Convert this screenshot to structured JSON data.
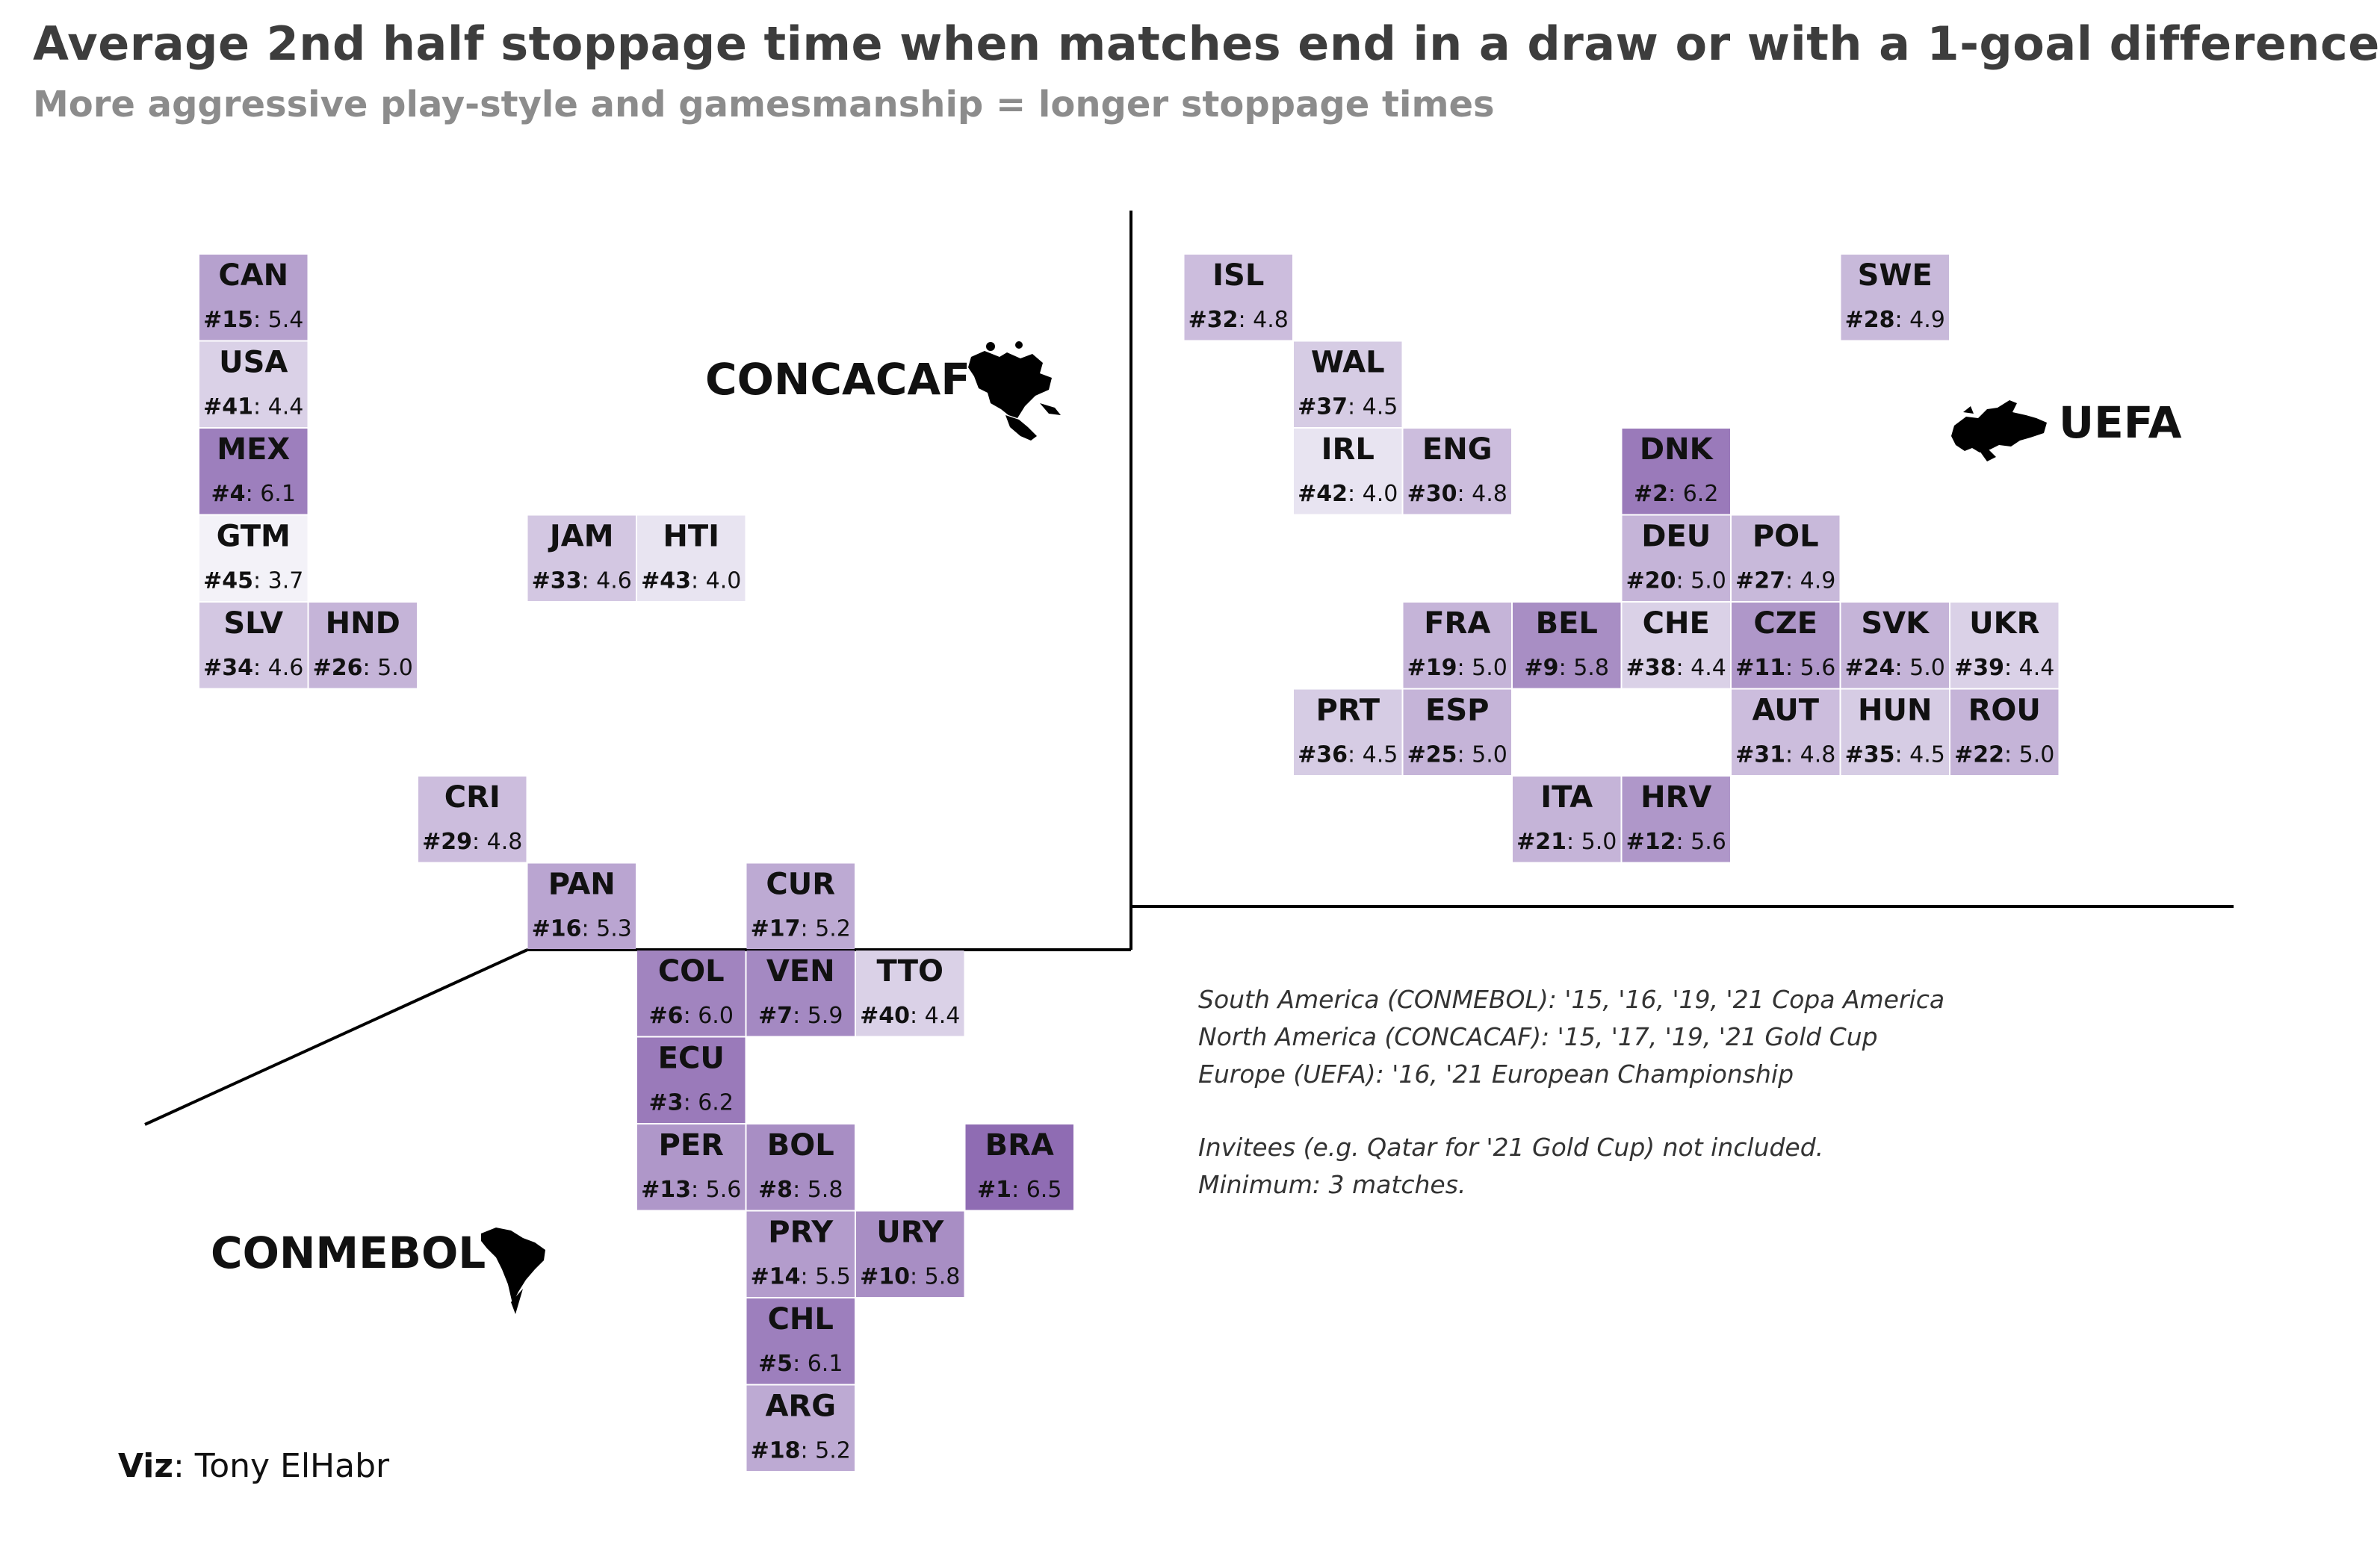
{
  "title": "Average 2nd half stoppage time when matches end in a draw or with a 1-goal difference",
  "subtitle": "More aggressive play-style and gamesmanship = longer stoppage times",
  "regions": {
    "concacaf": "CONCACAF",
    "uefa": "UEFA",
    "conmebol": "CONMEBOL"
  },
  "notes": {
    "lines": [
      "South America (CONMEBOL): '15, '16, '19, '21 Copa America",
      "North America (CONCACAF): '15, '17, '19, '21 Gold Cup",
      "Europe (UEFA): '16, '21 European Championship"
    ],
    "extra": [
      "Invitees (e.g. Qatar for '21 Gold Cup) not included.",
      "Minimum: 3 matches."
    ]
  },
  "credit": {
    "label": "Viz",
    "name": ": Tony ElHabr"
  },
  "colors": {
    "low": "#f3f2f8",
    "high": "#8f6cb3",
    "line": "#000000"
  },
  "chart_data": {
    "type": "heatmap",
    "title": "Average 2nd half stoppage time when matches end in a draw or with a 1-goal difference",
    "subtitle": "More aggressive play-style and gamesmanship = longer stoppage times",
    "value_range": [
      3.7,
      6.5
    ],
    "tiles": [
      {
        "code": "CAN",
        "rank": "#15",
        "value": "5.4",
        "col": 0,
        "row": 0
      },
      {
        "code": "USA",
        "rank": "#41",
        "value": "4.4",
        "col": 0,
        "row": 1
      },
      {
        "code": "MEX",
        "rank": "#4",
        "value": "6.1",
        "col": 0,
        "row": 2
      },
      {
        "code": "GTM",
        "rank": "#45",
        "value": "3.7",
        "col": 0,
        "row": 3
      },
      {
        "code": "JAM",
        "rank": "#33",
        "value": "4.6",
        "col": 3,
        "row": 3
      },
      {
        "code": "HTI",
        "rank": "#43",
        "value": "4.0",
        "col": 4,
        "row": 3
      },
      {
        "code": "SLV",
        "rank": "#34",
        "value": "4.6",
        "col": 0,
        "row": 4
      },
      {
        "code": "HND",
        "rank": "#26",
        "value": "5.0",
        "col": 1,
        "row": 4
      },
      {
        "code": "CRI",
        "rank": "#29",
        "value": "4.8",
        "col": 2,
        "row": 6
      },
      {
        "code": "PAN",
        "rank": "#16",
        "value": "5.3",
        "col": 3,
        "row": 7
      },
      {
        "code": "CUR",
        "rank": "#17",
        "value": "5.2",
        "col": 5,
        "row": 7
      },
      {
        "code": "COL",
        "rank": "#6",
        "value": "6.0",
        "col": 4,
        "row": 8
      },
      {
        "code": "VEN",
        "rank": "#7",
        "value": "5.9",
        "col": 5,
        "row": 8
      },
      {
        "code": "TTO",
        "rank": "#40",
        "value": "4.4",
        "col": 6,
        "row": 8
      },
      {
        "code": "ECU",
        "rank": "#3",
        "value": "6.2",
        "col": 4,
        "row": 9
      },
      {
        "code": "PER",
        "rank": "#13",
        "value": "5.6",
        "col": 4,
        "row": 10
      },
      {
        "code": "BOL",
        "rank": "#8",
        "value": "5.8",
        "col": 5,
        "row": 10
      },
      {
        "code": "BRA",
        "rank": "#1",
        "value": "6.5",
        "col": 7,
        "row": 10
      },
      {
        "code": "PRY",
        "rank": "#14",
        "value": "5.5",
        "col": 5,
        "row": 11
      },
      {
        "code": "URY",
        "rank": "#10",
        "value": "5.8",
        "col": 6,
        "row": 11
      },
      {
        "code": "CHL",
        "rank": "#5",
        "value": "6.1",
        "col": 5,
        "row": 12
      },
      {
        "code": "ARG",
        "rank": "#18",
        "value": "5.2",
        "col": 5,
        "row": 13
      },
      {
        "code": "ISL",
        "rank": "#32",
        "value": "4.8",
        "col": 9,
        "row": 0
      },
      {
        "code": "SWE",
        "rank": "#28",
        "value": "4.9",
        "col": 15,
        "row": 0
      },
      {
        "code": "WAL",
        "rank": "#37",
        "value": "4.5",
        "col": 10,
        "row": 1
      },
      {
        "code": "IRL",
        "rank": "#42",
        "value": "4.0",
        "col": 10,
        "row": 2
      },
      {
        "code": "ENG",
        "rank": "#30",
        "value": "4.8",
        "col": 11,
        "row": 2
      },
      {
        "code": "DNK",
        "rank": "#2",
        "value": "6.2",
        "col": 13,
        "row": 2
      },
      {
        "code": "DEU",
        "rank": "#20",
        "value": "5.0",
        "col": 13,
        "row": 3
      },
      {
        "code": "POL",
        "rank": "#27",
        "value": "4.9",
        "col": 14,
        "row": 3
      },
      {
        "code": "FRA",
        "rank": "#19",
        "value": "5.0",
        "col": 11,
        "row": 4
      },
      {
        "code": "BEL",
        "rank": "#9",
        "value": "5.8",
        "col": 12,
        "row": 4
      },
      {
        "code": "CHE",
        "rank": "#38",
        "value": "4.4",
        "col": 13,
        "row": 4
      },
      {
        "code": "CZE",
        "rank": "#11",
        "value": "5.6",
        "col": 14,
        "row": 4
      },
      {
        "code": "SVK",
        "rank": "#24",
        "value": "5.0",
        "col": 15,
        "row": 4
      },
      {
        "code": "UKR",
        "rank": "#39",
        "value": "4.4",
        "col": 16,
        "row": 4
      },
      {
        "code": "PRT",
        "rank": "#36",
        "value": "4.5",
        "col": 10,
        "row": 5
      },
      {
        "code": "ESP",
        "rank": "#25",
        "value": "5.0",
        "col": 11,
        "row": 5
      },
      {
        "code": "AUT",
        "rank": "#31",
        "value": "4.8",
        "col": 14,
        "row": 5
      },
      {
        "code": "HUN",
        "rank": "#35",
        "value": "4.5",
        "col": 15,
        "row": 5
      },
      {
        "code": "ROU",
        "rank": "#22",
        "value": "5.0",
        "col": 16,
        "row": 5
      },
      {
        "code": "ITA",
        "rank": "#21",
        "value": "5.0",
        "col": 12,
        "row": 6
      },
      {
        "code": "HRV",
        "rank": "#12",
        "value": "5.6",
        "col": 13,
        "row": 6
      }
    ]
  }
}
